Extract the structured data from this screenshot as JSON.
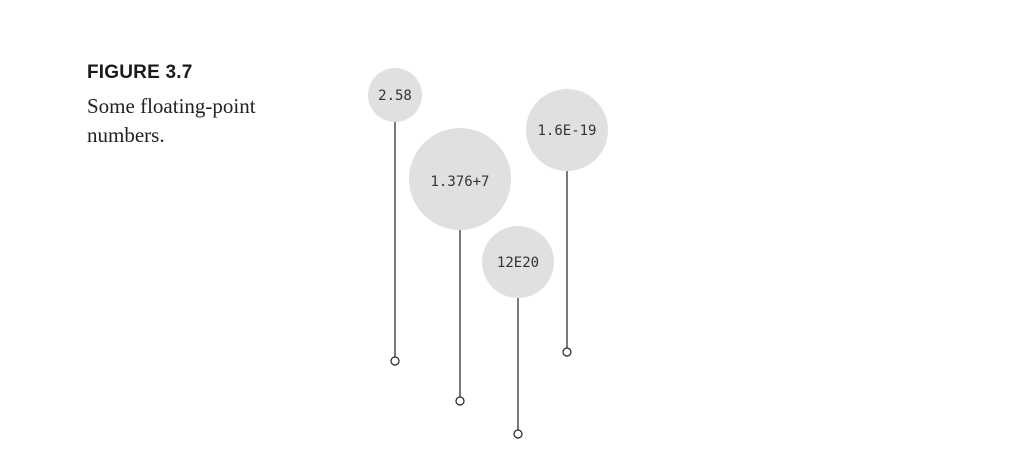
{
  "figure": {
    "label": "FIGURE 3.7",
    "caption": "Some floating-point numbers."
  },
  "colors": {
    "balloon_fill": "#e0e0e2",
    "string_color": "#222222"
  },
  "balloons": [
    {
      "text": "2.58"
    },
    {
      "text": "1.376+7"
    },
    {
      "text": "12E20"
    },
    {
      "text": "1.6E-19"
    }
  ]
}
